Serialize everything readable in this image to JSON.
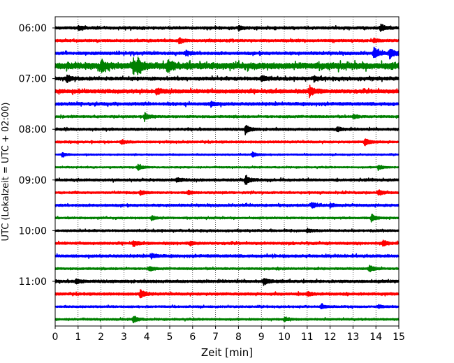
{
  "chart_data": {
    "type": "line",
    "title": "",
    "xlabel": "Zeit  [min]",
    "ylabel": "UTC (Lokalzeit = UTC + 02:00)",
    "xlim": [
      0,
      15
    ],
    "x_ticks": [
      0,
      1,
      2,
      3,
      4,
      5,
      6,
      7,
      8,
      9,
      10,
      11,
      12,
      13,
      14,
      15
    ],
    "y_tick_labels": [
      "06:00",
      "07:00",
      "08:00",
      "09:00",
      "10:00",
      "11:00"
    ],
    "grid": "vertical dotted",
    "trace_interval_minutes": 15,
    "trace_colors": [
      "#000000",
      "#ff0000",
      "#0000ff",
      "#008000"
    ],
    "series": [
      {
        "start": "06:00",
        "color": "#000000",
        "amplitude": 0.22,
        "events": [
          {
            "t": 14.2,
            "a": 0.55
          },
          {
            "t": 1.0,
            "a": 0.3
          },
          {
            "t": 8.0,
            "a": 0.3
          }
        ]
      },
      {
        "start": "06:15",
        "color": "#ff0000",
        "amplitude": 0.2,
        "events": [
          {
            "t": 5.4,
            "a": 0.4
          },
          {
            "t": 13.9,
            "a": 0.3
          }
        ]
      },
      {
        "start": "06:30",
        "color": "#0000ff",
        "amplitude": 0.25,
        "events": [
          {
            "t": 13.9,
            "a": 0.9
          },
          {
            "t": 14.6,
            "a": 0.8
          },
          {
            "t": 5.7,
            "a": 0.35
          }
        ]
      },
      {
        "start": "06:45",
        "color": "#008000",
        "amplitude": 0.55,
        "events": [
          {
            "t": 2.0,
            "a": 0.9
          },
          {
            "t": 3.4,
            "a": 0.9
          },
          {
            "t": 4.9,
            "a": 0.9
          },
          {
            "t": 3.6,
            "a": 0.8
          }
        ]
      },
      {
        "start": "07:00",
        "color": "#000000",
        "amplitude": 0.28,
        "events": [
          {
            "t": 0.5,
            "a": 0.5
          },
          {
            "t": 9.0,
            "a": 0.45
          },
          {
            "t": 11.3,
            "a": 0.35
          }
        ]
      },
      {
        "start": "07:15",
        "color": "#ff0000",
        "amplitude": 0.3,
        "events": [
          {
            "t": 11.1,
            "a": 0.8
          },
          {
            "t": 4.4,
            "a": 0.45
          }
        ]
      },
      {
        "start": "07:30",
        "color": "#0000ff",
        "amplitude": 0.25,
        "events": [
          {
            "t": 6.8,
            "a": 0.4
          }
        ]
      },
      {
        "start": "07:45",
        "color": "#008000",
        "amplitude": 0.18,
        "events": [
          {
            "t": 3.9,
            "a": 0.55
          },
          {
            "t": 13.0,
            "a": 0.3
          }
        ]
      },
      {
        "start": "08:00",
        "color": "#000000",
        "amplitude": 0.2,
        "events": [
          {
            "t": 8.3,
            "a": 0.7
          },
          {
            "t": 12.3,
            "a": 0.3
          }
        ]
      },
      {
        "start": "08:15",
        "color": "#ff0000",
        "amplitude": 0.18,
        "events": [
          {
            "t": 13.5,
            "a": 0.65
          },
          {
            "t": 2.9,
            "a": 0.3
          }
        ]
      },
      {
        "start": "08:30",
        "color": "#0000ff",
        "amplitude": 0.12,
        "events": [
          {
            "t": 8.6,
            "a": 0.4
          },
          {
            "t": 0.3,
            "a": 0.3
          }
        ]
      },
      {
        "start": "08:45",
        "color": "#008000",
        "amplitude": 0.12,
        "events": [
          {
            "t": 3.6,
            "a": 0.5
          },
          {
            "t": 14.1,
            "a": 0.4
          }
        ]
      },
      {
        "start": "09:00",
        "color": "#000000",
        "amplitude": 0.2,
        "events": [
          {
            "t": 8.3,
            "a": 0.75
          },
          {
            "t": 5.3,
            "a": 0.35
          }
        ]
      },
      {
        "start": "09:15",
        "color": "#ff0000",
        "amplitude": 0.17,
        "events": [
          {
            "t": 14.1,
            "a": 0.45
          },
          {
            "t": 3.7,
            "a": 0.35
          },
          {
            "t": 5.8,
            "a": 0.3
          }
        ]
      },
      {
        "start": "09:30",
        "color": "#0000ff",
        "amplitude": 0.2,
        "events": [
          {
            "t": 11.2,
            "a": 0.45
          },
          {
            "t": 12.0,
            "a": 0.3
          }
        ]
      },
      {
        "start": "09:45",
        "color": "#008000",
        "amplitude": 0.15,
        "events": [
          {
            "t": 13.8,
            "a": 0.6
          },
          {
            "t": 4.2,
            "a": 0.35
          }
        ]
      },
      {
        "start": "10:00",
        "color": "#000000",
        "amplitude": 0.17,
        "events": [
          {
            "t": 11.0,
            "a": 0.3
          }
        ]
      },
      {
        "start": "10:15",
        "color": "#ff0000",
        "amplitude": 0.2,
        "events": [
          {
            "t": 3.4,
            "a": 0.45
          },
          {
            "t": 14.3,
            "a": 0.45
          },
          {
            "t": 5.9,
            "a": 0.3
          }
        ]
      },
      {
        "start": "10:30",
        "color": "#0000ff",
        "amplitude": 0.22,
        "events": [
          {
            "t": 4.2,
            "a": 0.35
          }
        ]
      },
      {
        "start": "10:45",
        "color": "#008000",
        "amplitude": 0.17,
        "events": [
          {
            "t": 13.7,
            "a": 0.55
          },
          {
            "t": 4.1,
            "a": 0.35
          }
        ]
      },
      {
        "start": "11:00",
        "color": "#000000",
        "amplitude": 0.22,
        "events": [
          {
            "t": 9.1,
            "a": 0.5
          },
          {
            "t": 0.9,
            "a": 0.35
          }
        ]
      },
      {
        "start": "11:15",
        "color": "#ff0000",
        "amplitude": 0.22,
        "events": [
          {
            "t": 3.7,
            "a": 0.65
          },
          {
            "t": 11.0,
            "a": 0.3
          }
        ]
      },
      {
        "start": "11:30",
        "color": "#0000ff",
        "amplitude": 0.15,
        "events": [
          {
            "t": 11.6,
            "a": 0.35
          },
          {
            "t": 14.1,
            "a": 0.25
          }
        ]
      },
      {
        "start": "11:45",
        "color": "#008000",
        "amplitude": 0.16,
        "events": [
          {
            "t": 3.4,
            "a": 0.55
          },
          {
            "t": 10.0,
            "a": 0.3
          }
        ]
      }
    ]
  }
}
